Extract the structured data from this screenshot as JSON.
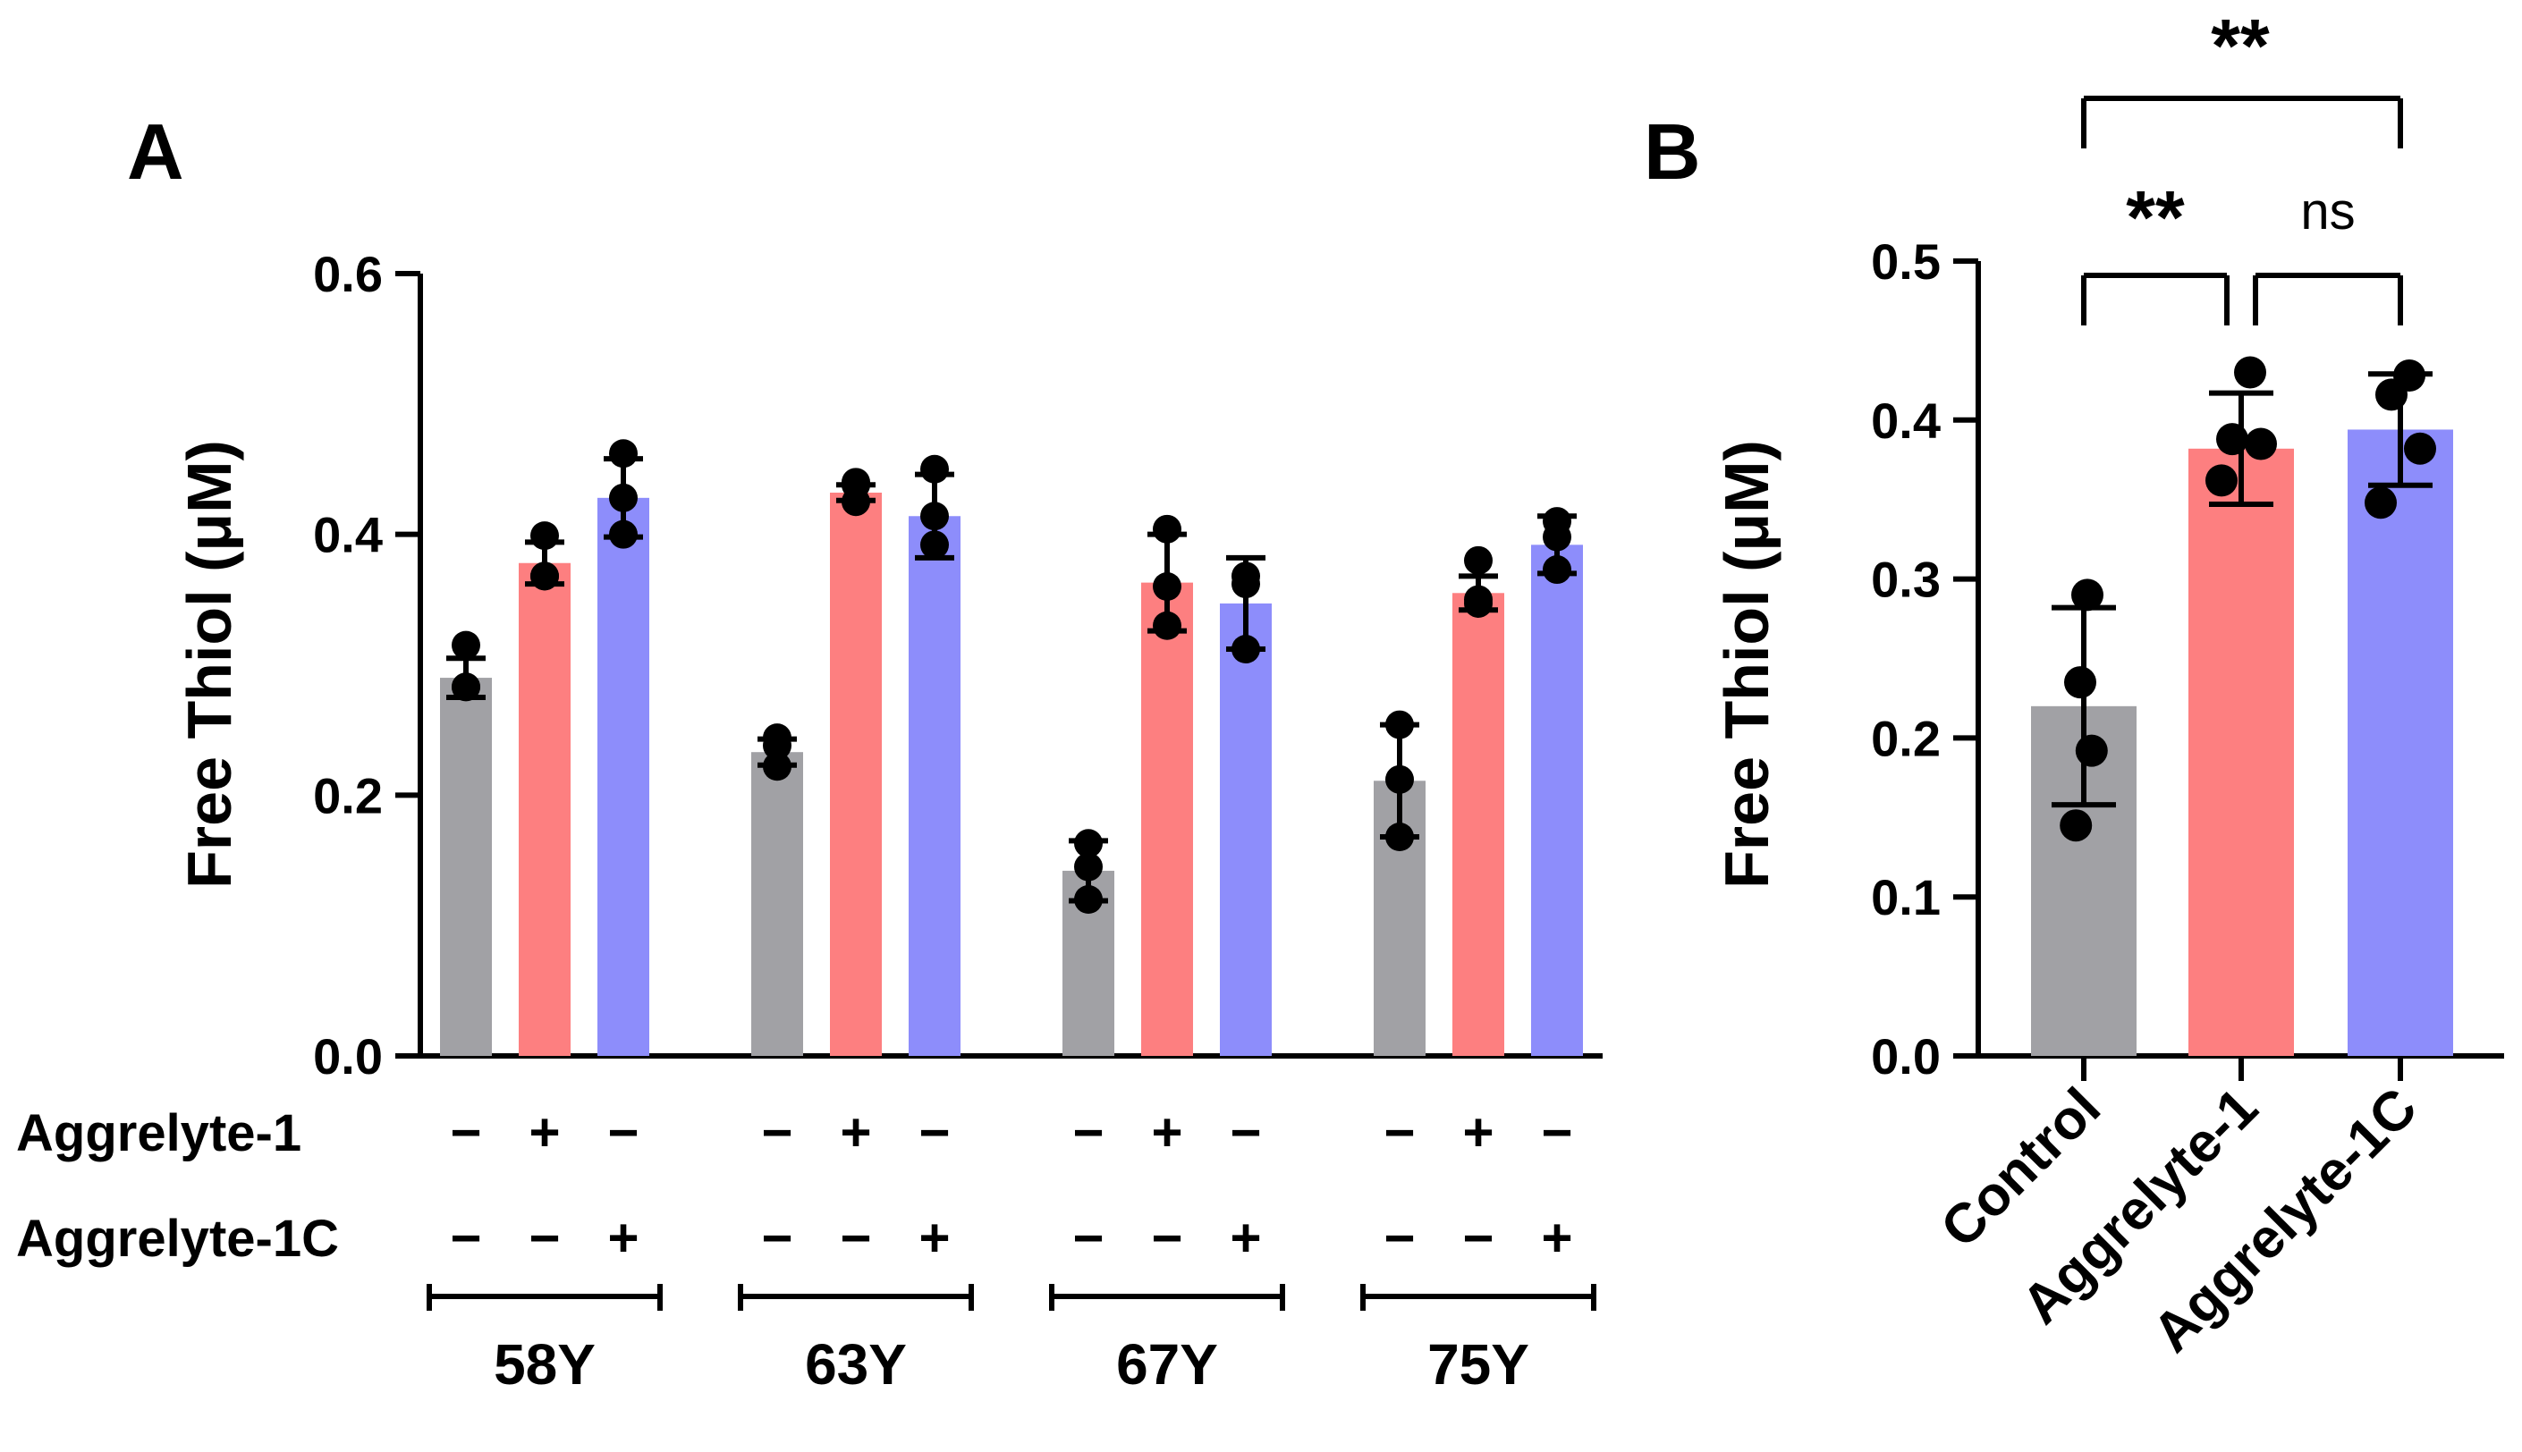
{
  "panels": {
    "a_label": "A",
    "b_label": "B"
  },
  "colors": {
    "control": "#a1a1a5",
    "aggrelyte1": "#fd7f80",
    "aggrelyte1c": "#8d8dfb",
    "ink": "#000000"
  },
  "chart_data": [
    {
      "panel": "A",
      "type": "bar",
      "ylabel": "Free Thiol (μM)",
      "ylim": [
        0,
        0.6
      ],
      "yticks": [
        0.0,
        0.2,
        0.4,
        0.6
      ],
      "ytick_labels": [
        "0.0",
        "0.2",
        "0.4",
        "0.6"
      ],
      "row_labels": [
        "Aggrelyte-1",
        "Aggrelyte-1C"
      ],
      "groups": [
        {
          "label": "58Y",
          "bars": [
            {
              "treatment": "control",
              "mean": 0.29,
              "sd": 0.015,
              "points": [
                0.315,
                0.283,
                0.283
              ],
              "aggrelyte1_sign": "−",
              "aggrelyte1c_sign": "−"
            },
            {
              "treatment": "aggrelyte1",
              "mean": 0.378,
              "sd": 0.016,
              "points": [
                0.399,
                0.368,
                0.368
              ],
              "aggrelyte1_sign": "+",
              "aggrelyte1c_sign": "−"
            },
            {
              "treatment": "aggrelyte1c",
              "mean": 0.428,
              "sd": 0.03,
              "points": [
                0.462,
                0.428,
                0.4
              ],
              "aggrelyte1_sign": "−",
              "aggrelyte1c_sign": "+"
            }
          ]
        },
        {
          "label": "63Y",
          "bars": [
            {
              "treatment": "control",
              "mean": 0.233,
              "sd": 0.01,
              "points": [
                0.244,
                0.222,
                0.238
              ],
              "aggrelyte1_sign": "−",
              "aggrelyte1c_sign": "−"
            },
            {
              "treatment": "aggrelyte1",
              "mean": 0.432,
              "sd": 0.006,
              "points": [
                0.44,
                0.438,
                0.425
              ],
              "aggrelyte1_sign": "+",
              "aggrelyte1c_sign": "−"
            },
            {
              "treatment": "aggrelyte1c",
              "mean": 0.414,
              "sd": 0.032,
              "points": [
                0.45,
                0.414,
                0.392
              ],
              "aggrelyte1_sign": "−",
              "aggrelyte1c_sign": "+"
            }
          ]
        },
        {
          "label": "67Y",
          "bars": [
            {
              "treatment": "control",
              "mean": 0.142,
              "sd": 0.023,
              "points": [
                0.163,
                0.145,
                0.12
              ],
              "aggrelyte1_sign": "−",
              "aggrelyte1c_sign": "−"
            },
            {
              "treatment": "aggrelyte1",
              "mean": 0.363,
              "sd": 0.037,
              "points": [
                0.404,
                0.36,
                0.33
              ],
              "aggrelyte1_sign": "+",
              "aggrelyte1c_sign": "−"
            },
            {
              "treatment": "aggrelyte1c",
              "mean": 0.347,
              "sd": 0.035,
              "points": [
                0.368,
                0.362,
                0.312
              ],
              "aggrelyte1_sign": "−",
              "aggrelyte1c_sign": "+"
            }
          ]
        },
        {
          "label": "75Y",
          "bars": [
            {
              "treatment": "control",
              "mean": 0.211,
              "sd": 0.043,
              "points": [
                0.254,
                0.212,
                0.168
              ],
              "aggrelyte1_sign": "−",
              "aggrelyte1c_sign": "−"
            },
            {
              "treatment": "aggrelyte1",
              "mean": 0.355,
              "sd": 0.013,
              "points": [
                0.38,
                0.347,
                0.35
              ],
              "aggrelyte1_sign": "+",
              "aggrelyte1c_sign": "−"
            },
            {
              "treatment": "aggrelyte1c",
              "mean": 0.392,
              "sd": 0.022,
              "points": [
                0.41,
                0.398,
                0.373
              ],
              "aggrelyte1_sign": "−",
              "aggrelyte1c_sign": "+"
            }
          ]
        }
      ]
    },
    {
      "panel": "B",
      "type": "bar",
      "ylabel": "Free Thiol (μM)",
      "ylim": [
        0,
        0.5
      ],
      "yticks": [
        0.0,
        0.1,
        0.2,
        0.3,
        0.4,
        0.5
      ],
      "ytick_labels": [
        "0.0",
        "0.1",
        "0.2",
        "0.3",
        "0.4",
        "0.5"
      ],
      "categories": [
        "Control",
        "Aggrelyte-1",
        "Aggrelyte-1C"
      ],
      "treatments": [
        "control",
        "aggrelyte1",
        "aggrelyte1c"
      ],
      "means": [
        0.22,
        0.382,
        0.394
      ],
      "sds": [
        0.062,
        0.035,
        0.035
      ],
      "points": [
        [
          0.29,
          0.235,
          0.192,
          0.145
        ],
        [
          0.43,
          0.388,
          0.385,
          0.362
        ],
        [
          0.428,
          0.416,
          0.382,
          0.348
        ]
      ],
      "significance": [
        {
          "from": "Control",
          "to": "Aggrelyte-1",
          "label": "**"
        },
        {
          "from": "Aggrelyte-1",
          "to": "Aggrelyte-1C",
          "label": "ns"
        },
        {
          "from": "Control",
          "to": "Aggrelyte-1C",
          "label": "**"
        }
      ]
    }
  ]
}
